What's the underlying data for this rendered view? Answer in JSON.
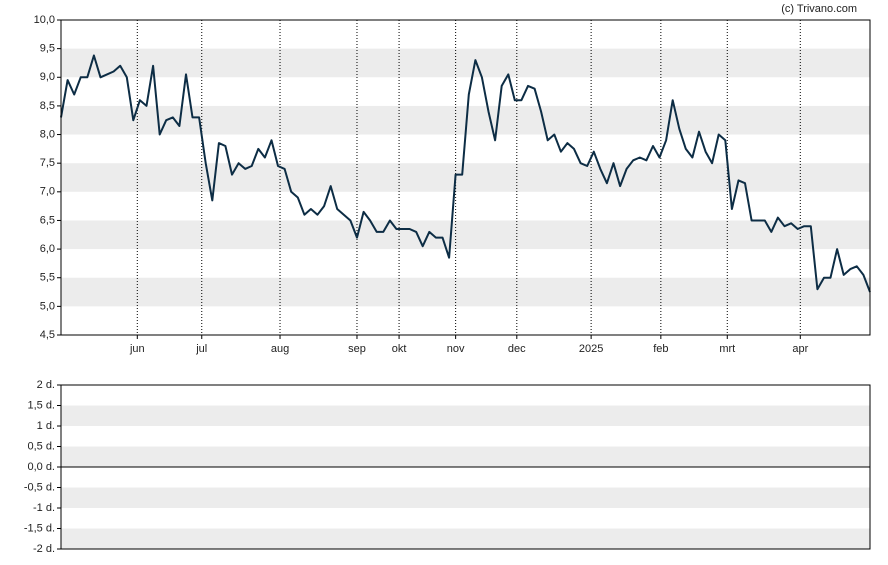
{
  "credit": "(c) Trivano.com",
  "chart_data": [
    {
      "type": "line",
      "x": [
        0,
        1,
        2,
        3,
        4,
        5,
        6,
        7,
        8,
        9,
        10,
        11,
        12,
        13,
        14,
        15,
        16,
        17,
        18,
        19,
        20,
        21,
        22,
        23,
        24,
        25,
        26,
        27,
        28,
        29,
        30,
        31,
        32,
        33,
        34,
        35,
        36,
        37,
        38,
        39,
        40,
        41,
        42,
        43,
        44,
        45,
        46,
        47,
        48,
        49,
        50,
        51,
        52,
        53,
        54,
        55,
        56,
        57,
        58,
        59,
        60,
        61,
        62,
        63,
        64,
        65,
        66,
        67,
        68,
        69,
        70,
        71,
        72,
        73,
        74,
        75,
        76,
        77,
        78,
        79,
        80,
        81,
        82,
        83,
        84,
        85,
        86,
        87,
        88,
        89,
        90,
        91,
        92,
        93,
        94,
        95,
        96,
        97,
        98,
        99,
        100,
        101,
        102,
        103,
        104,
        105,
        106,
        107,
        108,
        109,
        110,
        111,
        112,
        113,
        114,
        115,
        116,
        117,
        118,
        119,
        120,
        121,
        122,
        123
      ],
      "series": [
        {
          "color": "#0d2d45",
          "values": [
            8.3,
            8.95,
            8.7,
            9.0,
            9.0,
            9.38,
            9.0,
            9.05,
            9.1,
            9.2,
            9.0,
            8.25,
            8.6,
            8.5,
            9.2,
            8.0,
            8.25,
            8.3,
            8.15,
            9.05,
            8.3,
            8.3,
            7.5,
            6.85,
            7.85,
            7.8,
            7.3,
            7.5,
            7.4,
            7.45,
            7.75,
            7.6,
            7.9,
            7.45,
            7.4,
            7.0,
            6.9,
            6.6,
            6.7,
            6.6,
            6.75,
            7.1,
            6.7,
            6.6,
            6.5,
            6.2,
            6.65,
            6.5,
            6.3,
            6.3,
            6.5,
            6.35,
            6.35,
            6.35,
            6.3,
            6.05,
            6.3,
            6.2,
            6.2,
            5.85,
            7.3,
            7.3,
            8.7,
            9.3,
            9.0,
            8.4,
            7.9,
            8.85,
            9.05,
            8.6,
            8.6,
            8.85,
            8.8,
            8.4,
            7.9,
            8.0,
            7.7,
            7.85,
            7.75,
            7.5,
            7.45,
            7.7,
            7.4,
            7.15,
            7.5,
            7.1,
            7.4,
            7.55,
            7.6,
            7.55,
            7.8,
            7.6,
            7.9,
            8.6,
            8.1,
            7.75,
            7.6,
            8.05,
            7.7,
            7.5,
            8.0,
            7.9,
            6.7,
            7.2,
            7.15,
            6.5,
            6.5,
            6.5,
            6.3,
            6.55,
            6.4,
            6.45,
            6.35,
            6.4,
            6.4,
            5.3,
            5.5,
            5.5,
            6.0,
            5.55,
            5.65,
            5.7,
            5.55,
            5.25
          ]
        }
      ],
      "xlim": [
        0,
        123
      ],
      "xticks": [
        {
          "value": 11.6,
          "label": "jun"
        },
        {
          "value": 21.4,
          "label": "jul"
        },
        {
          "value": 33.3,
          "label": "aug"
        },
        {
          "value": 45,
          "label": "sep"
        },
        {
          "value": 51.4,
          "label": "okt"
        },
        {
          "value": 60,
          "label": "nov"
        },
        {
          "value": 69.3,
          "label": "dec"
        },
        {
          "value": 80.6,
          "label": "2025"
        },
        {
          "value": 91.2,
          "label": "feb"
        },
        {
          "value": 101.3,
          "label": "mrt"
        },
        {
          "value": 112.4,
          "label": "apr"
        }
      ],
      "ylim": [
        4.5,
        10
      ],
      "yticks": [
        {
          "value": 4.5,
          "label": "4,5"
        },
        {
          "value": 5,
          "label": "5,0"
        },
        {
          "value": 5.5,
          "label": "5,5"
        },
        {
          "value": 6,
          "label": "6,0"
        },
        {
          "value": 6.5,
          "label": "6,5"
        },
        {
          "value": 7,
          "label": "7,0"
        },
        {
          "value": 7.5,
          "label": "7,5"
        },
        {
          "value": 8,
          "label": "8,0"
        },
        {
          "value": 8.5,
          "label": "8,5"
        },
        {
          "value": 9,
          "label": "9,0"
        },
        {
          "value": 9.5,
          "label": "9,5"
        },
        {
          "value": 10,
          "label": "10,0"
        }
      ]
    },
    {
      "type": "empty",
      "ylim": [
        -2,
        2
      ],
      "yticks": [
        {
          "value": -2,
          "label": "-2 d."
        },
        {
          "value": -1.5,
          "label": "-1,5 d."
        },
        {
          "value": -1,
          "label": "-1 d."
        },
        {
          "value": -0.5,
          "label": "-0,5 d."
        },
        {
          "value": 0,
          "label": "0,0 d."
        },
        {
          "value": 0.5,
          "label": "0,5 d."
        },
        {
          "value": 1,
          "label": "1 d."
        },
        {
          "value": 1.5,
          "label": "1,5 d."
        },
        {
          "value": 2,
          "label": "2 d."
        }
      ]
    }
  ]
}
